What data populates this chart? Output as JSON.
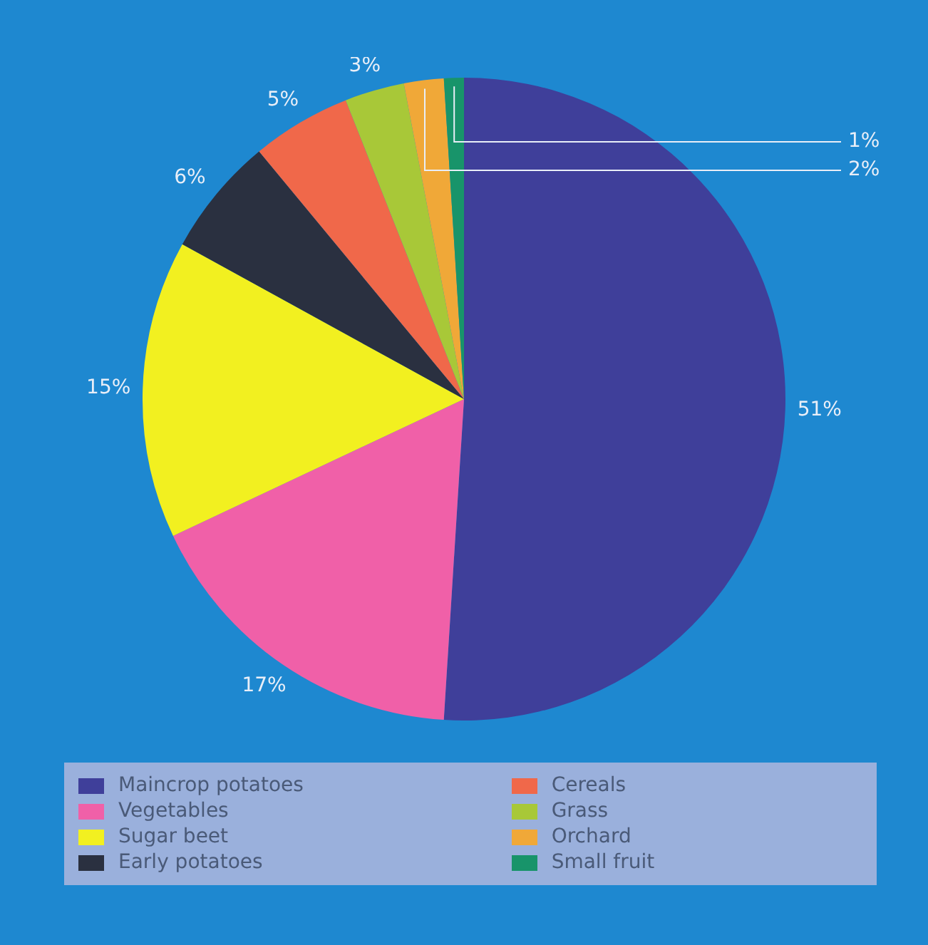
{
  "chart_data": {
    "type": "pie",
    "categories": [
      "Maincrop potatoes",
      "Vegetables",
      "Sugar beet",
      "Early potatoes",
      "Cereals",
      "Grass",
      "Orchard",
      "Small fruit"
    ],
    "values": [
      51,
      17,
      15,
      6,
      5,
      3,
      2,
      1
    ],
    "colors": [
      "#3f3f9a",
      "#f060a8",
      "#f2f020",
      "#2a3040",
      "#f0684a",
      "#a8c838",
      "#f0a838",
      "#18946a"
    ],
    "value_labels": [
      "51%",
      "17%",
      "15%",
      "6%",
      "5%",
      "3%",
      "2%",
      "1%"
    ],
    "legend": "bottom"
  }
}
